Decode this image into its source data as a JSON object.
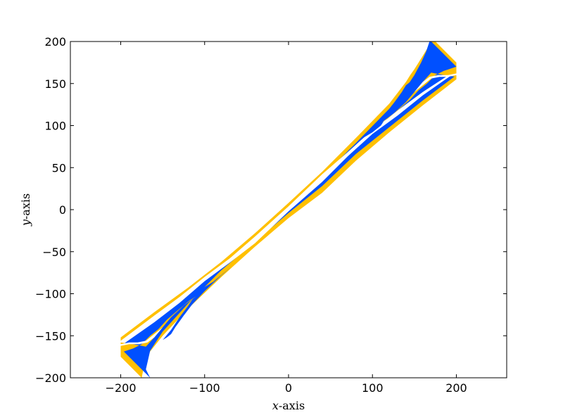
{
  "chart_data": {
    "type": "contour",
    "title": "",
    "xlabel_var": "x",
    "xlabel_rest": "-axis",
    "ylabel_var": "y",
    "ylabel_rest": "-axis",
    "xlim": [
      -260,
      260
    ],
    "ylim": [
      -200,
      200
    ],
    "data_domain": {
      "x": [
        -200,
        200
      ],
      "y": [
        -200,
        200
      ]
    },
    "xticks": [
      -200,
      -100,
      0,
      100,
      200
    ],
    "xtick_labels": [
      "−200",
      "−100",
      "0",
      "100",
      "200"
    ],
    "yticks": [
      -200,
      -150,
      -100,
      -50,
      0,
      50,
      100,
      150,
      200
    ],
    "ytick_labels": [
      "−200",
      "−150",
      "−100",
      "−50",
      "0",
      "50",
      "100",
      "150",
      "200"
    ],
    "grid": false,
    "legend": "none",
    "colors": {
      "outer_band": "#ffc000",
      "inner_band": "#0050ff",
      "background": "#ffffff",
      "core": "#ffffff"
    },
    "bands": [
      {
        "name": "outer",
        "color": "#ffc000",
        "polygon": [
          [
            -200,
            -152
          ],
          [
            -160,
            -122
          ],
          [
            -120,
            -93
          ],
          [
            -80,
            -62
          ],
          [
            -40,
            -28
          ],
          [
            0,
            8
          ],
          [
            40,
            45
          ],
          [
            80,
            85
          ],
          [
            120,
            126
          ],
          [
            140,
            152
          ],
          [
            145,
            160
          ],
          [
            150,
            167
          ],
          [
            155,
            175
          ],
          [
            160,
            183
          ],
          [
            165,
            191
          ],
          [
            170,
            200
          ],
          [
            175,
            200
          ],
          [
            200,
            175
          ],
          [
            200,
            155
          ],
          [
            160,
            124
          ],
          [
            120,
            92
          ],
          [
            80,
            58
          ],
          [
            40,
            20
          ],
          [
            0,
            -10
          ],
          [
            -40,
            -44
          ],
          [
            -80,
            -80
          ],
          [
            -120,
            -118
          ],
          [
            -150,
            -150
          ],
          [
            -170,
            -175
          ],
          [
            -175,
            -200
          ],
          [
            -200,
            -175
          ]
        ]
      },
      {
        "name": "inner",
        "color": "#0050ff",
        "polygon": [
          [
            -200,
            -158
          ],
          [
            -160,
            -129
          ],
          [
            -120,
            -99
          ],
          [
            -80,
            -68
          ],
          [
            -40,
            -35
          ],
          [
            0,
            2
          ],
          [
            40,
            39
          ],
          [
            80,
            79
          ],
          [
            120,
            120
          ],
          [
            140,
            145
          ],
          [
            150,
            160
          ],
          [
            158,
            175
          ],
          [
            164,
            188
          ],
          [
            168,
            200
          ],
          [
            170,
            200
          ],
          [
            200,
            170
          ],
          [
            200,
            160
          ],
          [
            160,
            130
          ],
          [
            120,
            98
          ],
          [
            80,
            66
          ],
          [
            40,
            28
          ],
          [
            0,
            -4
          ],
          [
            -40,
            -38
          ],
          [
            -80,
            -72
          ],
          [
            -120,
            -112
          ],
          [
            -150,
            -145
          ],
          [
            -165,
            -168
          ],
          [
            -170,
            -190
          ],
          [
            -165,
            -200
          ],
          [
            -200,
            -165
          ]
        ]
      },
      {
        "name": "core",
        "color": "#ffffff",
        "polygon": [
          [
            -200,
            -162
          ],
          [
            -160,
            -134
          ],
          [
            -130,
            -111
          ],
          [
            -100,
            -85
          ],
          [
            -70,
            -63
          ],
          [
            -40,
            -40
          ],
          [
            0,
            -2
          ],
          [
            40,
            33
          ],
          [
            70,
            63
          ],
          [
            100,
            90
          ],
          [
            130,
            112
          ],
          [
            160,
            136
          ],
          [
            200,
            164
          ],
          [
            200,
            166
          ],
          [
            160,
            140
          ],
          [
            130,
            118
          ],
          [
            100,
            95
          ],
          [
            70,
            68
          ],
          [
            40,
            42
          ],
          [
            0,
            4
          ],
          [
            -40,
            -32
          ],
          [
            -70,
            -58
          ],
          [
            -100,
            -80
          ],
          [
            -130,
            -104
          ],
          [
            -160,
            -126
          ],
          [
            -200,
            -156
          ]
        ]
      }
    ],
    "lobes": [
      {
        "name": "upper-blue-lobe",
        "color": "#0050ff",
        "polygon": [
          [
            68,
            68
          ],
          [
            80,
            78
          ],
          [
            100,
            97
          ],
          [
            115,
            113
          ],
          [
            125,
            126
          ],
          [
            135,
            140
          ],
          [
            140,
            148
          ],
          [
            145,
            152
          ],
          [
            150,
            155
          ],
          [
            140,
            143
          ],
          [
            130,
            128
          ],
          [
            120,
            115
          ],
          [
            110,
            100
          ],
          [
            100,
            92
          ],
          [
            90,
            86
          ],
          [
            78,
            76
          ]
        ]
      },
      {
        "name": "upper-orange-lobe",
        "color": "#ffc000",
        "polygon": [
          [
            110,
            103
          ],
          [
            125,
            114
          ],
          [
            140,
            128
          ],
          [
            150,
            140
          ],
          [
            160,
            152
          ],
          [
            170,
            163
          ],
          [
            185,
            160
          ],
          [
            200,
            158
          ],
          [
            200,
            170
          ],
          [
            185,
            165
          ],
          [
            175,
            160
          ],
          [
            165,
            150
          ],
          [
            155,
            142
          ],
          [
            145,
            131
          ],
          [
            130,
            118
          ],
          [
            118,
            108
          ]
        ]
      },
      {
        "name": "upper-white-notch",
        "color": "#ffffff",
        "polygon": [
          [
            150,
            140
          ],
          [
            160,
            148
          ],
          [
            170,
            156
          ],
          [
            180,
            158
          ],
          [
            190,
            158
          ],
          [
            200,
            160
          ],
          [
            200,
            162
          ],
          [
            190,
            160
          ],
          [
            178,
            160
          ],
          [
            168,
            158
          ],
          [
            160,
            152
          ]
        ]
      },
      {
        "name": "lower-blue-lobe",
        "color": "#0050ff",
        "polygon": [
          [
            -68,
            -68
          ],
          [
            -80,
            -78
          ],
          [
            -100,
            -97
          ],
          [
            -115,
            -113
          ],
          [
            -125,
            -126
          ],
          [
            -135,
            -140
          ],
          [
            -140,
            -148
          ],
          [
            -145,
            -152
          ],
          [
            -150,
            -155
          ],
          [
            -140,
            -143
          ],
          [
            -130,
            -128
          ],
          [
            -120,
            -115
          ],
          [
            -110,
            -100
          ],
          [
            -100,
            -92
          ],
          [
            -90,
            -86
          ],
          [
            -78,
            -76
          ]
        ]
      },
      {
        "name": "lower-orange-lobe",
        "color": "#ffc000",
        "polygon": [
          [
            -110,
            -103
          ],
          [
            -125,
            -114
          ],
          [
            -140,
            -128
          ],
          [
            -150,
            -140
          ],
          [
            -160,
            -152
          ],
          [
            -170,
            -163
          ],
          [
            -185,
            -160
          ],
          [
            -200,
            -158
          ],
          [
            -200,
            -170
          ],
          [
            -185,
            -165
          ],
          [
            -175,
            -160
          ],
          [
            -165,
            -150
          ],
          [
            -155,
            -142
          ],
          [
            -145,
            -131
          ],
          [
            -130,
            -118
          ],
          [
            -118,
            -108
          ]
        ]
      },
      {
        "name": "lower-white-notch",
        "color": "#ffffff",
        "polygon": [
          [
            -150,
            -140
          ],
          [
            -160,
            -148
          ],
          [
            -170,
            -156
          ],
          [
            -180,
            -158
          ],
          [
            -190,
            -158
          ],
          [
            -200,
            -160
          ],
          [
            -200,
            -162
          ],
          [
            -190,
            -160
          ],
          [
            -178,
            -160
          ],
          [
            -168,
            -158
          ],
          [
            -160,
            -152
          ]
        ]
      }
    ]
  }
}
